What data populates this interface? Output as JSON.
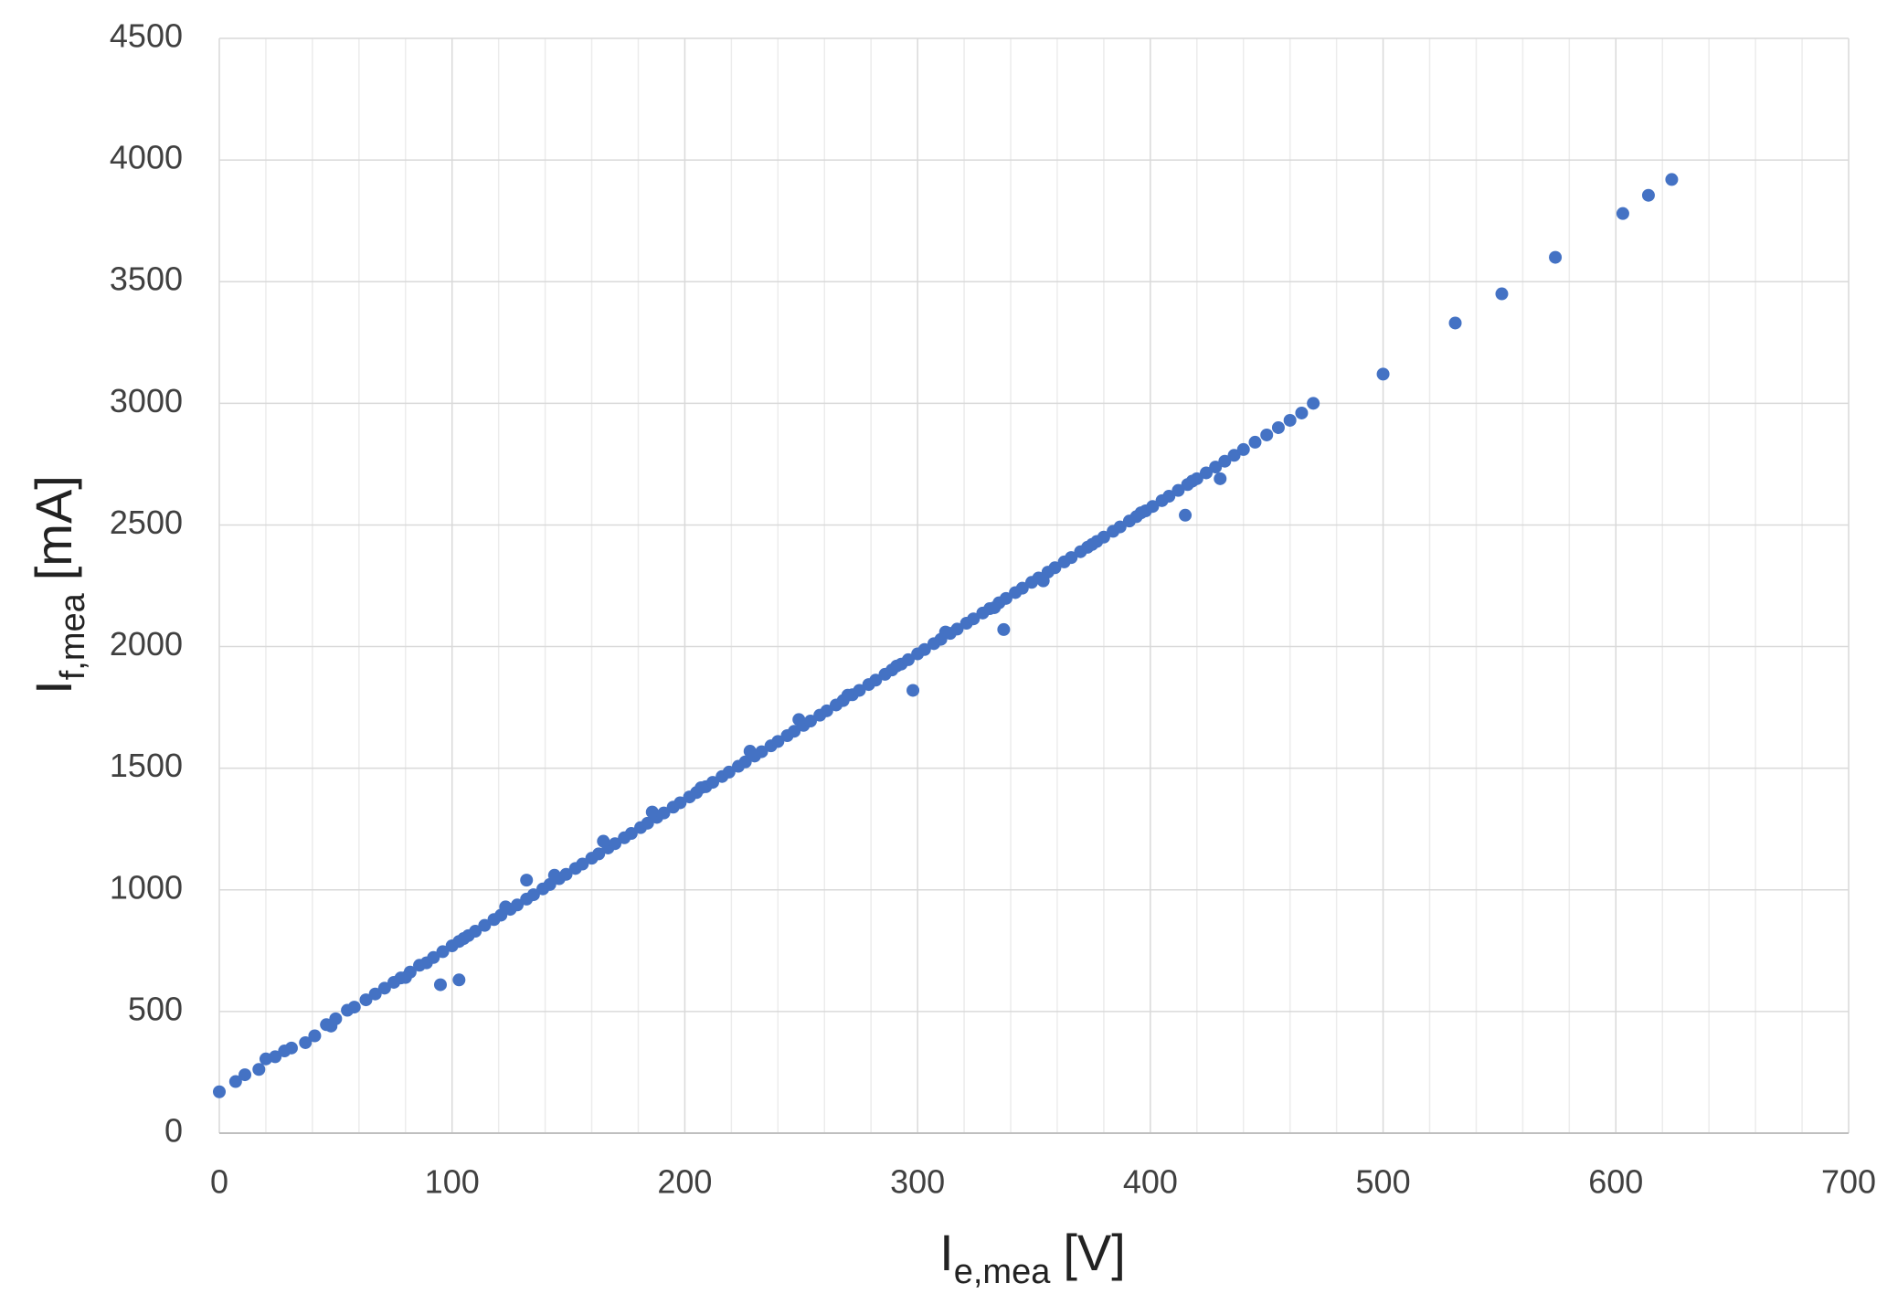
{
  "chart_data": {
    "type": "scatter",
    "x_label": {
      "main": "I",
      "sub": "e,mea",
      "unit": "[V]"
    },
    "y_label": {
      "main": "I",
      "sub": "f,mea",
      "unit": "[mA]"
    },
    "color": "#4472c4",
    "xlim": [
      0,
      700
    ],
    "xticks": [
      0,
      100,
      200,
      300,
      400,
      500,
      600,
      700
    ],
    "x_minor_ticks": [
      20,
      40,
      60,
      80,
      120,
      140,
      160,
      180,
      220,
      240,
      260,
      280,
      320,
      340,
      360,
      380,
      420,
      440,
      460,
      480,
      520,
      540,
      560,
      580,
      620,
      640,
      660,
      680
    ],
    "ylim": [
      0,
      4500
    ],
    "yticks": [
      0,
      500,
      1000,
      1500,
      2000,
      2500,
      3000,
      3500,
      4000,
      4500
    ],
    "grid": true,
    "x": [
      0,
      7,
      11,
      17,
      20,
      24,
      28,
      31,
      37,
      41,
      46,
      50,
      55,
      58,
      63,
      67,
      71,
      75,
      78,
      82,
      86,
      89,
      92,
      96,
      100,
      103,
      107,
      110,
      114,
      118,
      121,
      125,
      128,
      132,
      135,
      139,
      142,
      146,
      149,
      153,
      156,
      160,
      163,
      167,
      170,
      174,
      177,
      181,
      184,
      188,
      191,
      195,
      198,
      202,
      205,
      209,
      212,
      216,
      219,
      223,
      226,
      230,
      233,
      237,
      240,
      244,
      247,
      251,
      254,
      258,
      261,
      265,
      268,
      272,
      275,
      279,
      282,
      286,
      289,
      293,
      296,
      300,
      303,
      307,
      310,
      314,
      317,
      321,
      324,
      328,
      331,
      335,
      338,
      342,
      345,
      349,
      352,
      356,
      359,
      363,
      366,
      370,
      373,
      377,
      380,
      384,
      387,
      391,
      394,
      398,
      401,
      405,
      408,
      412,
      416,
      420,
      424,
      428,
      432,
      436,
      440,
      445,
      450,
      455,
      460,
      465,
      470,
      48,
      80,
      105,
      123,
      144,
      165,
      186,
      207,
      228,
      249,
      270,
      291,
      312,
      333,
      354,
      375,
      396,
      418,
      132,
      95,
      103,
      337,
      415,
      430,
      298,
      500,
      531,
      551,
      574,
      603,
      614,
      624
    ],
    "y": [
      170,
      212,
      240,
      262,
      305,
      314,
      338,
      350,
      372,
      400,
      446,
      470,
      505,
      518,
      548,
      572,
      596,
      620,
      638,
      662,
      690,
      700,
      722,
      746,
      770,
      788,
      812,
      830,
      854,
      878,
      896,
      920,
      938,
      962,
      980,
      1004,
      1022,
      1046,
      1064,
      1088,
      1106,
      1130,
      1148,
      1172,
      1190,
      1214,
      1232,
      1256,
      1274,
      1298,
      1316,
      1340,
      1358,
      1382,
      1400,
      1424,
      1442,
      1466,
      1484,
      1508,
      1526,
      1550,
      1568,
      1592,
      1610,
      1634,
      1652,
      1676,
      1694,
      1718,
      1736,
      1760,
      1778,
      1802,
      1820,
      1844,
      1862,
      1886,
      1904,
      1928,
      1946,
      1970,
      1988,
      2012,
      2030,
      2054,
      2072,
      2096,
      2114,
      2138,
      2156,
      2180,
      2198,
      2222,
      2240,
      2264,
      2282,
      2306,
      2324,
      2348,
      2366,
      2390,
      2408,
      2432,
      2450,
      2474,
      2492,
      2516,
      2534,
      2558,
      2576,
      2600,
      2618,
      2642,
      2666,
      2690,
      2714,
      2738,
      2762,
      2786,
      2810,
      2840,
      2870,
      2900,
      2930,
      2960,
      3000,
      440,
      640,
      800,
      930,
      1060,
      1200,
      1320,
      1420,
      1570,
      1700,
      1800,
      1920,
      2060,
      2160,
      2270,
      2420,
      2550,
      2680,
      1040,
      610,
      630,
      2070,
      2540,
      2690,
      1820,
      3120,
      3330,
      3450,
      3600,
      3780,
      3855,
      3920
    ]
  }
}
